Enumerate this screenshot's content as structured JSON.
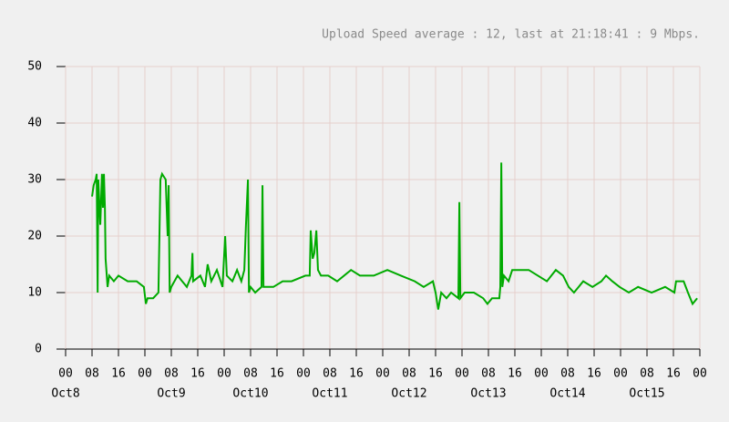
{
  "chart_data": {
    "type": "line",
    "title": "Upload Speed average : 12, last at 21:18:41 : 9 Mbps.",
    "color": "#00aa00",
    "grid": true,
    "x": [
      8.0,
      8.5,
      9.1,
      9.4,
      9.7,
      9.9,
      10.5,
      11.0,
      11.3,
      11.6,
      11.9,
      12.1,
      12.7,
      13.2,
      14.6,
      16.0,
      18.8,
      21.5,
      23.7,
      24.3,
      24.8,
      26.5,
      28.1,
      28.7,
      29.2,
      30.3,
      30.9,
      31.2,
      31.5,
      32.0,
      33.9,
      35.3,
      36.7,
      38.1,
      38.4,
      38.6,
      40.8,
      42.2,
      43.0,
      44.1,
      45.8,
      47.5,
      48.3,
      48.8,
      50.5,
      51.9,
      53.2,
      54.1,
      54.6,
      55.2,
      55.5,
      56.0,
      57.4,
      59.3,
      59.6,
      59.9,
      62.9,
      65.7,
      68.4,
      72.6,
      73.9,
      74.2,
      74.8,
      75.3,
      75.9,
      76.4,
      77.3,
      79.5,
      82.2,
      86.4,
      89.1,
      93.3,
      97.4,
      101.5,
      105.7,
      108.4,
      111.2,
      112.0,
      112.8,
      113.7,
      115.3,
      116.7,
      118.9,
      119.2,
      119.5,
      120.8,
      123.6,
      126.4,
      127.7,
      129.1,
      131.3,
      131.6,
      131.9,
      132.2,
      132.7,
      134.1,
      135.2,
      140.2,
      145.7,
      148.4,
      150.6,
      152.3,
      153.9,
      156.7,
      159.5,
      162.2,
      163.6,
      165.5,
      167.7,
      170.5,
      173.3,
      177.4,
      181.5,
      184.3,
      184.8,
      187.1,
      188.4,
      189.8,
      191.2
    ],
    "values": [
      27,
      29,
      30,
      31,
      10,
      30,
      22,
      31,
      25,
      31,
      25,
      16,
      11,
      13,
      12,
      13,
      12,
      12,
      11,
      8,
      9,
      9,
      10,
      30,
      31,
      30,
      20,
      29,
      10,
      11,
      13,
      12,
      11,
      13,
      17,
      12,
      13,
      11,
      15,
      12,
      14,
      11,
      20,
      13,
      12,
      14,
      12,
      14,
      22,
      30,
      10,
      11,
      10,
      11,
      29,
      11,
      11,
      12,
      12,
      13,
      13,
      21,
      16,
      17,
      21,
      14,
      13,
      13,
      12,
      14,
      13,
      13,
      14,
      13,
      12,
      11,
      12,
      10,
      7,
      10,
      9,
      10,
      9,
      26,
      9,
      10,
      10,
      9,
      8,
      9,
      9,
      11,
      33,
      11,
      13,
      12,
      14,
      14,
      12,
      14,
      13,
      11,
      10,
      12,
      11,
      12,
      13,
      12,
      11,
      10,
      11,
      10,
      11,
      10,
      12,
      12,
      10,
      8,
      9
    ],
    "xlim": [
      0,
      192
    ],
    "ylim": [
      0,
      50
    ],
    "yticks": [
      0,
      10,
      20,
      30,
      40,
      50
    ],
    "xticks": [
      {
        "value": 0,
        "label": "00"
      },
      {
        "value": 8,
        "label": "08"
      },
      {
        "value": 16,
        "label": "16"
      },
      {
        "value": 24,
        "label": "00"
      },
      {
        "value": 32,
        "label": "08"
      },
      {
        "value": 40,
        "label": "16"
      },
      {
        "value": 48,
        "label": "00"
      },
      {
        "value": 56,
        "label": "08"
      },
      {
        "value": 64,
        "label": "16"
      },
      {
        "value": 72,
        "label": "00"
      },
      {
        "value": 80,
        "label": "08"
      },
      {
        "value": 88,
        "label": "16"
      },
      {
        "value": 96,
        "label": "00"
      },
      {
        "value": 104,
        "label": "08"
      },
      {
        "value": 112,
        "label": "16"
      },
      {
        "value": 120,
        "label": "00"
      },
      {
        "value": 128,
        "label": "08"
      },
      {
        "value": 136,
        "label": "16"
      },
      {
        "value": 144,
        "label": "00"
      },
      {
        "value": 152,
        "label": "08"
      },
      {
        "value": 160,
        "label": "16"
      },
      {
        "value": 168,
        "label": "00"
      },
      {
        "value": 176,
        "label": "08"
      },
      {
        "value": 184,
        "label": "16"
      },
      {
        "value": 192,
        "label": "00"
      }
    ],
    "x_date_labels": [
      {
        "value": 0,
        "label": "Oct8"
      },
      {
        "value": 32,
        "label": "Oct9"
      },
      {
        "value": 56,
        "label": "Oct10"
      },
      {
        "value": 80,
        "label": "Oct11"
      },
      {
        "value": 104,
        "label": "Oct12"
      },
      {
        "value": 128,
        "label": "Oct13"
      },
      {
        "value": 152,
        "label": "Oct14"
      },
      {
        "value": 176,
        "label": "Oct15"
      }
    ]
  }
}
